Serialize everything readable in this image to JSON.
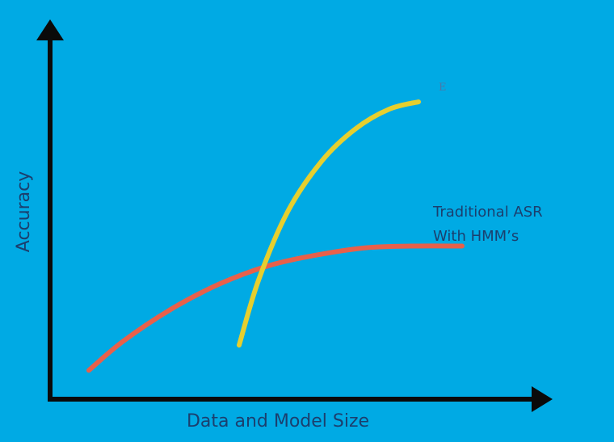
{
  "chart_data": {
    "type": "line",
    "title": "",
    "xlabel": "Data and Model Size",
    "ylabel": "Accuracy",
    "xlim": [
      0,
      10
    ],
    "ylim": [
      0,
      10
    ],
    "grid": false,
    "ticks": false,
    "legend": "none",
    "series": [
      {
        "name": "Traditional ASR With HMM's",
        "label_lines": [
          "Traditional ASR",
          "With HMM’s"
        ],
        "color": "#e8604a",
        "points": [
          [
            0.8,
            0.8
          ],
          [
            1.5,
            1.6
          ],
          [
            2.5,
            2.5
          ],
          [
            3.5,
            3.2
          ],
          [
            4.5,
            3.7
          ],
          [
            5.5,
            4.0
          ],
          [
            6.5,
            4.2
          ],
          [
            7.5,
            4.25
          ],
          [
            8.5,
            4.25
          ]
        ]
      },
      {
        "name": "E",
        "end_label": "E",
        "color": "#e6cf2e",
        "points": [
          [
            3.9,
            1.5
          ],
          [
            4.3,
            3.3
          ],
          [
            4.9,
            5.2
          ],
          [
            5.6,
            6.6
          ],
          [
            6.3,
            7.5
          ],
          [
            7.0,
            8.05
          ],
          [
            7.6,
            8.25
          ]
        ]
      }
    ],
    "colors": {
      "background": "#00aae4",
      "axis": "#0a0a0a",
      "text": "#1b3f6e"
    }
  }
}
